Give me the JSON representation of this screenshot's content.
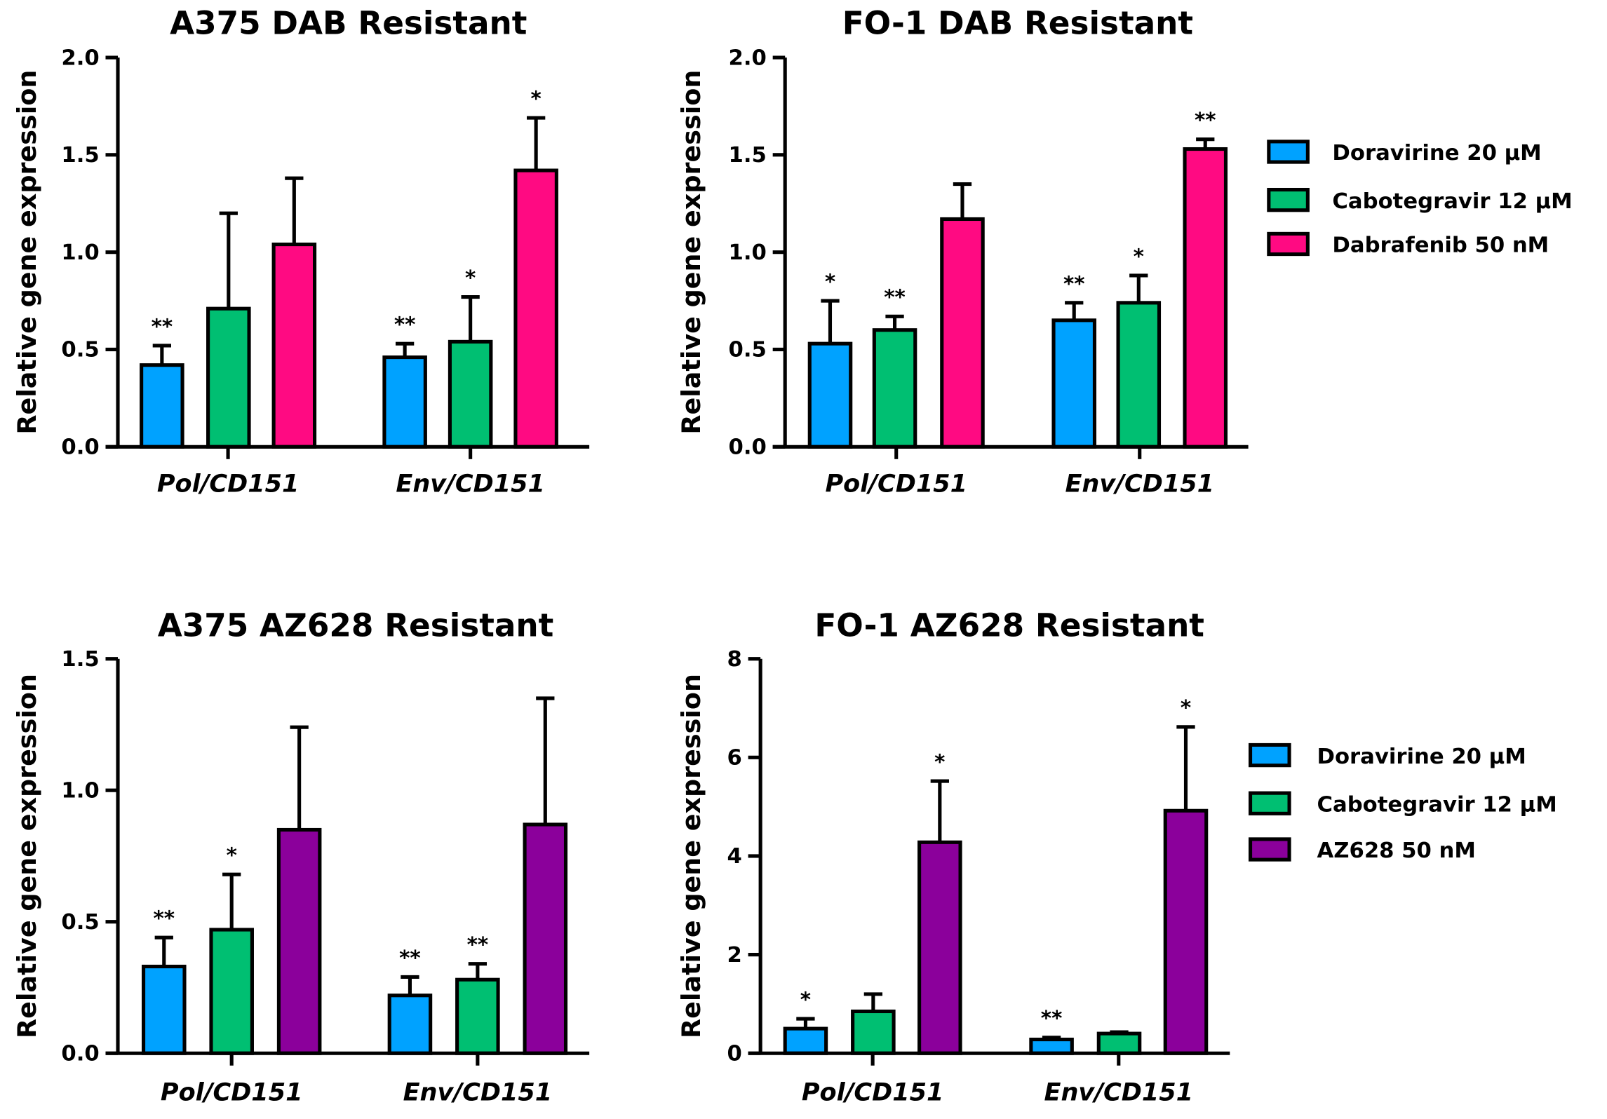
{
  "chart_data": [
    {
      "type": "bar",
      "title": "A375 DAB Resistant",
      "ylabel": "Relative gene expression",
      "ylim": [
        0,
        2.0
      ],
      "yticks": [
        "0.0",
        "0.5",
        "1.0",
        "1.5",
        "2.0"
      ],
      "categories": [
        "Pol/CD151",
        "Env/CD151"
      ],
      "series": [
        {
          "name": "Doravirine 20 µM",
          "color": "#00a2ff",
          "values": [
            0.42,
            0.46
          ],
          "error_top": [
            0.52,
            0.53
          ],
          "sig": [
            "**",
            "**"
          ]
        },
        {
          "name": "Cabotegravir 12 µM",
          "color": "#00bf72",
          "values": [
            0.71,
            0.54
          ],
          "error_top": [
            1.2,
            0.77
          ],
          "sig": [
            "",
            "*"
          ]
        },
        {
          "name": "Dabrafenib 50 nM",
          "color": "#ff0a82",
          "values": [
            1.04,
            1.42
          ],
          "error_top": [
            1.38,
            1.69
          ],
          "sig": [
            "",
            "*"
          ]
        }
      ],
      "legend": false
    },
    {
      "type": "bar",
      "title": "FO-1 DAB Resistant",
      "ylabel": "Relative gene expression",
      "ylim": [
        0,
        2.0
      ],
      "yticks": [
        "0.0",
        "0.5",
        "1.0",
        "1.5",
        "2.0"
      ],
      "categories": [
        "Pol/CD151",
        "Env/CD151"
      ],
      "series": [
        {
          "name": "Doravirine 20 µM",
          "color": "#00a2ff",
          "values": [
            0.53,
            0.65
          ],
          "error_top": [
            0.75,
            0.74
          ],
          "sig": [
            "*",
            "**"
          ]
        },
        {
          "name": "Cabotegravir 12 µM",
          "color": "#00bf72",
          "values": [
            0.6,
            0.74
          ],
          "error_top": [
            0.67,
            0.88
          ],
          "sig": [
            "**",
            "*"
          ]
        },
        {
          "name": "Dabrafenib 50 nM",
          "color": "#ff0a82",
          "values": [
            1.17,
            1.53
          ],
          "error_top": [
            1.35,
            1.58
          ],
          "sig": [
            "",
            "**"
          ]
        }
      ],
      "legend": true
    },
    {
      "type": "bar",
      "title": "A375 AZ628 Resistant",
      "ylabel": "Relative gene expression",
      "ylim": [
        0,
        1.5
      ],
      "yticks": [
        "0.0",
        "0.5",
        "1.0",
        "1.5"
      ],
      "categories": [
        "Pol/CD151",
        "Env/CD151"
      ],
      "series": [
        {
          "name": "Doravirine 20 µM",
          "color": "#00a2ff",
          "values": [
            0.33,
            0.22
          ],
          "error_top": [
            0.44,
            0.29
          ],
          "sig": [
            "**",
            "**"
          ]
        },
        {
          "name": "Cabotegravir 12 µM",
          "color": "#00bf72",
          "values": [
            0.47,
            0.28
          ],
          "error_top": [
            0.68,
            0.34
          ],
          "sig": [
            "*",
            "**"
          ]
        },
        {
          "name": "AZ628 50 nM",
          "color": "#8b009b",
          "values": [
            0.85,
            0.87
          ],
          "error_top": [
            1.24,
            1.35
          ],
          "sig": [
            "",
            ""
          ]
        }
      ],
      "legend": false
    },
    {
      "type": "bar",
      "title": "FO-1 AZ628 Resistant",
      "ylabel": "Relative gene expression",
      "ylim": [
        0,
        8
      ],
      "yticks": [
        "0",
        "2",
        "4",
        "6",
        "8"
      ],
      "categories": [
        "Pol/CD151",
        "Env/CD151"
      ],
      "series": [
        {
          "name": "Doravirine 20 µM",
          "color": "#00a2ff",
          "values": [
            0.5,
            0.28
          ],
          "error_top": [
            0.7,
            0.32
          ],
          "sig": [
            "*",
            "**"
          ]
        },
        {
          "name": "Cabotegravir 12 µM",
          "color": "#00bf72",
          "values": [
            0.85,
            0.4
          ],
          "error_top": [
            1.2,
            0.43
          ],
          "sig": [
            "",
            ""
          ]
        },
        {
          "name": "AZ628 50 nM",
          "color": "#8b009b",
          "values": [
            4.28,
            4.92
          ],
          "error_top": [
            5.52,
            6.62
          ],
          "sig": [
            "*",
            "*"
          ]
        }
      ],
      "legend": true
    }
  ]
}
